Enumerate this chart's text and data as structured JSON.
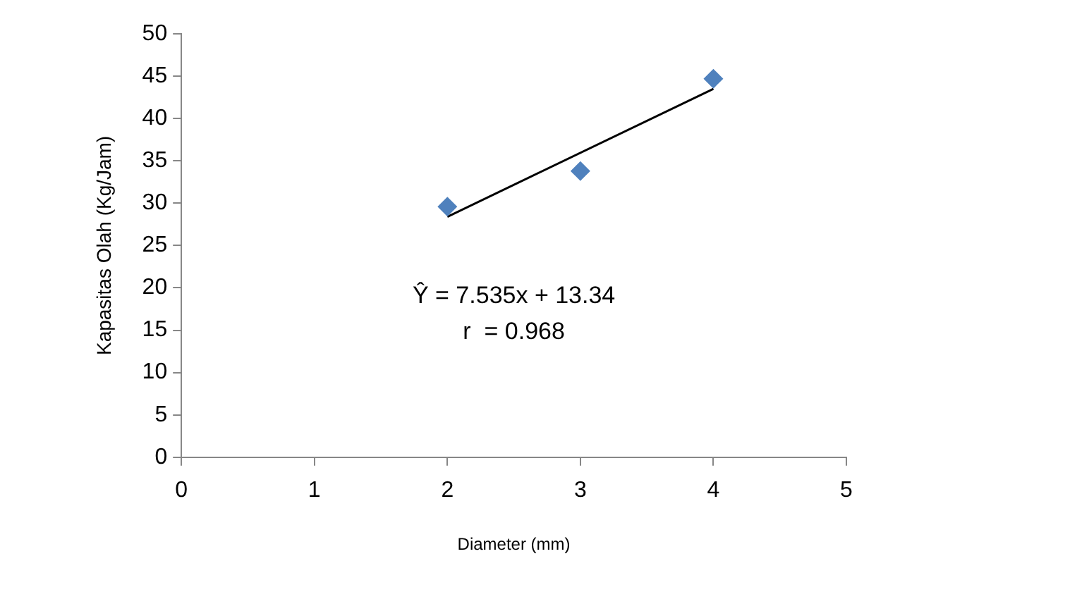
{
  "chart_data": {
    "type": "scatter",
    "xlabel": "Diameter (mm)",
    "ylabel": "Kapasitas Olah (Kg/Jam)",
    "x": [
      2,
      3,
      4
    ],
    "series": [
      {
        "type": "scatter",
        "color": "#4f81bd",
        "marker": "diamond",
        "values": [
          29.6,
          33.8,
          44.7
        ]
      },
      {
        "type": "line",
        "color": "#000000",
        "marker": "none",
        "line_style": "solid",
        "x": [
          2,
          4
        ],
        "values": [
          28.4,
          43.5
        ]
      }
    ],
    "xlim": [
      0,
      5
    ],
    "xticks": [
      0,
      1,
      2,
      3,
      4,
      5
    ],
    "ylim": [
      0,
      50
    ],
    "yticks": [
      0,
      5,
      10,
      15,
      20,
      25,
      30,
      35,
      40,
      45,
      50
    ],
    "grid": false,
    "legend": false,
    "annotations": [
      "Ŷ = 7.535x + 13.34",
      "r  = 0.968"
    ]
  }
}
